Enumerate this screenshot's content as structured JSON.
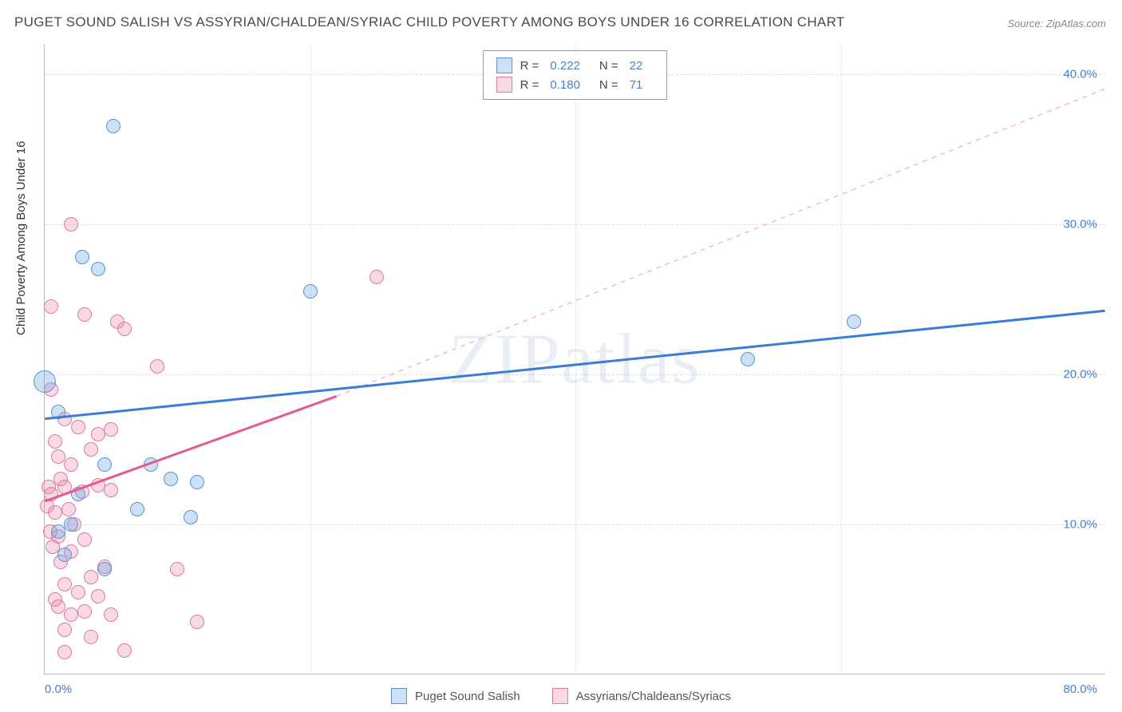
{
  "title": "PUGET SOUND SALISH VS ASSYRIAN/CHALDEAN/SYRIAC CHILD POVERTY AMONG BOYS UNDER 16 CORRELATION CHART",
  "source": "Source: ZipAtlas.com",
  "y_axis_label": "Child Poverty Among Boys Under 16",
  "watermark": "ZIPatlas",
  "series": {
    "a": {
      "name": "Puget Sound Salish",
      "color_fill": "rgba(109,165,230,0.35)",
      "color_stroke": "#5a93d4",
      "r_value": "0.222",
      "n_value": "22"
    },
    "b": {
      "name": "Assyrians/Chaldeans/Syriacs",
      "color_fill": "rgba(235,130,160,0.30)",
      "color_stroke": "#e07aa0",
      "r_value": "0.180",
      "n_value": "71"
    }
  },
  "legend_labels": {
    "R": "R =",
    "N": "N ="
  },
  "chart": {
    "xlim": [
      0,
      80
    ],
    "ylim": [
      0,
      42
    ],
    "x_ticks": [
      0,
      80
    ],
    "x_grid_minor": [
      20,
      40,
      60
    ],
    "y_ticks": [
      10,
      20,
      30,
      40
    ],
    "point_radius": 9,
    "line_blue": {
      "from": [
        0,
        17.0
      ],
      "to": [
        80,
        24.2
      ],
      "color": "#3a7dd6",
      "width": 3,
      "dash": ""
    },
    "line_pink_solid": {
      "from": [
        0,
        11.5
      ],
      "to": [
        22,
        18.5
      ],
      "color": "#e85a8a",
      "width": 3,
      "dash": ""
    },
    "line_pink_dash": {
      "from": [
        22,
        18.5
      ],
      "to": [
        80,
        39.0
      ],
      "color": "#f4b8cc",
      "width": 1.5,
      "dash": "6 6"
    }
  },
  "points_a": [
    [
      0,
      19.5,
      14
    ],
    [
      5.2,
      36.5,
      9
    ],
    [
      2.8,
      27.8,
      9
    ],
    [
      4.0,
      27.0,
      9
    ],
    [
      20.0,
      25.5,
      9
    ],
    [
      61.0,
      23.5,
      9
    ],
    [
      53.0,
      21.0,
      9
    ],
    [
      1.0,
      17.5,
      9
    ],
    [
      4.5,
      14.0,
      9
    ],
    [
      8.0,
      14.0,
      9
    ],
    [
      9.5,
      13.0,
      9
    ],
    [
      11.5,
      12.8,
      9
    ],
    [
      7.0,
      11.0,
      9
    ],
    [
      11.0,
      10.5,
      9
    ],
    [
      2.0,
      10.0,
      9
    ],
    [
      2.5,
      12.0,
      9
    ],
    [
      1.0,
      9.5,
      9
    ],
    [
      4.5,
      7.0,
      9
    ],
    [
      1.5,
      8.0,
      9
    ]
  ],
  "points_b": [
    [
      2.0,
      30.0,
      9
    ],
    [
      0.5,
      24.5,
      9
    ],
    [
      3.0,
      24.0,
      9
    ],
    [
      5.5,
      23.5,
      9
    ],
    [
      6.0,
      23.0,
      9
    ],
    [
      25.0,
      26.5,
      9
    ],
    [
      8.5,
      20.5,
      9
    ],
    [
      0.5,
      19.0,
      9
    ],
    [
      1.5,
      17.0,
      9
    ],
    [
      2.5,
      16.5,
      9
    ],
    [
      4.0,
      16.0,
      9
    ],
    [
      5.0,
      16.3,
      9
    ],
    [
      0.8,
      15.5,
      9
    ],
    [
      3.5,
      15.0,
      9
    ],
    [
      1.0,
      14.5,
      9
    ],
    [
      2.0,
      14.0,
      9
    ],
    [
      1.2,
      13.0,
      9
    ],
    [
      0.3,
      12.5,
      9
    ],
    [
      2.8,
      12.2,
      9
    ],
    [
      0.5,
      12.0,
      9
    ],
    [
      1.5,
      12.5,
      9
    ],
    [
      4.0,
      12.6,
      9
    ],
    [
      5.0,
      12.3,
      9
    ],
    [
      1.8,
      11.0,
      9
    ],
    [
      0.2,
      11.2,
      9
    ],
    [
      0.8,
      10.8,
      9
    ],
    [
      2.2,
      10.0,
      9
    ],
    [
      0.4,
      9.5,
      9
    ],
    [
      1.0,
      9.2,
      9
    ],
    [
      3.0,
      9.0,
      9
    ],
    [
      0.6,
      8.5,
      9
    ],
    [
      2.0,
      8.2,
      9
    ],
    [
      1.2,
      7.5,
      9
    ],
    [
      4.5,
      7.2,
      9
    ],
    [
      10.0,
      7.0,
      9
    ],
    [
      3.5,
      6.5,
      9
    ],
    [
      1.5,
      6.0,
      9
    ],
    [
      2.5,
      5.5,
      9
    ],
    [
      0.8,
      5.0,
      9
    ],
    [
      4.0,
      5.2,
      9
    ],
    [
      1.0,
      4.5,
      9
    ],
    [
      2.0,
      4.0,
      9
    ],
    [
      3.0,
      4.2,
      9
    ],
    [
      5.0,
      4.0,
      9
    ],
    [
      1.5,
      3.0,
      9
    ],
    [
      11.5,
      3.5,
      9
    ],
    [
      3.5,
      2.5,
      9
    ],
    [
      1.5,
      1.5,
      9
    ],
    [
      6.0,
      1.6,
      9
    ]
  ]
}
